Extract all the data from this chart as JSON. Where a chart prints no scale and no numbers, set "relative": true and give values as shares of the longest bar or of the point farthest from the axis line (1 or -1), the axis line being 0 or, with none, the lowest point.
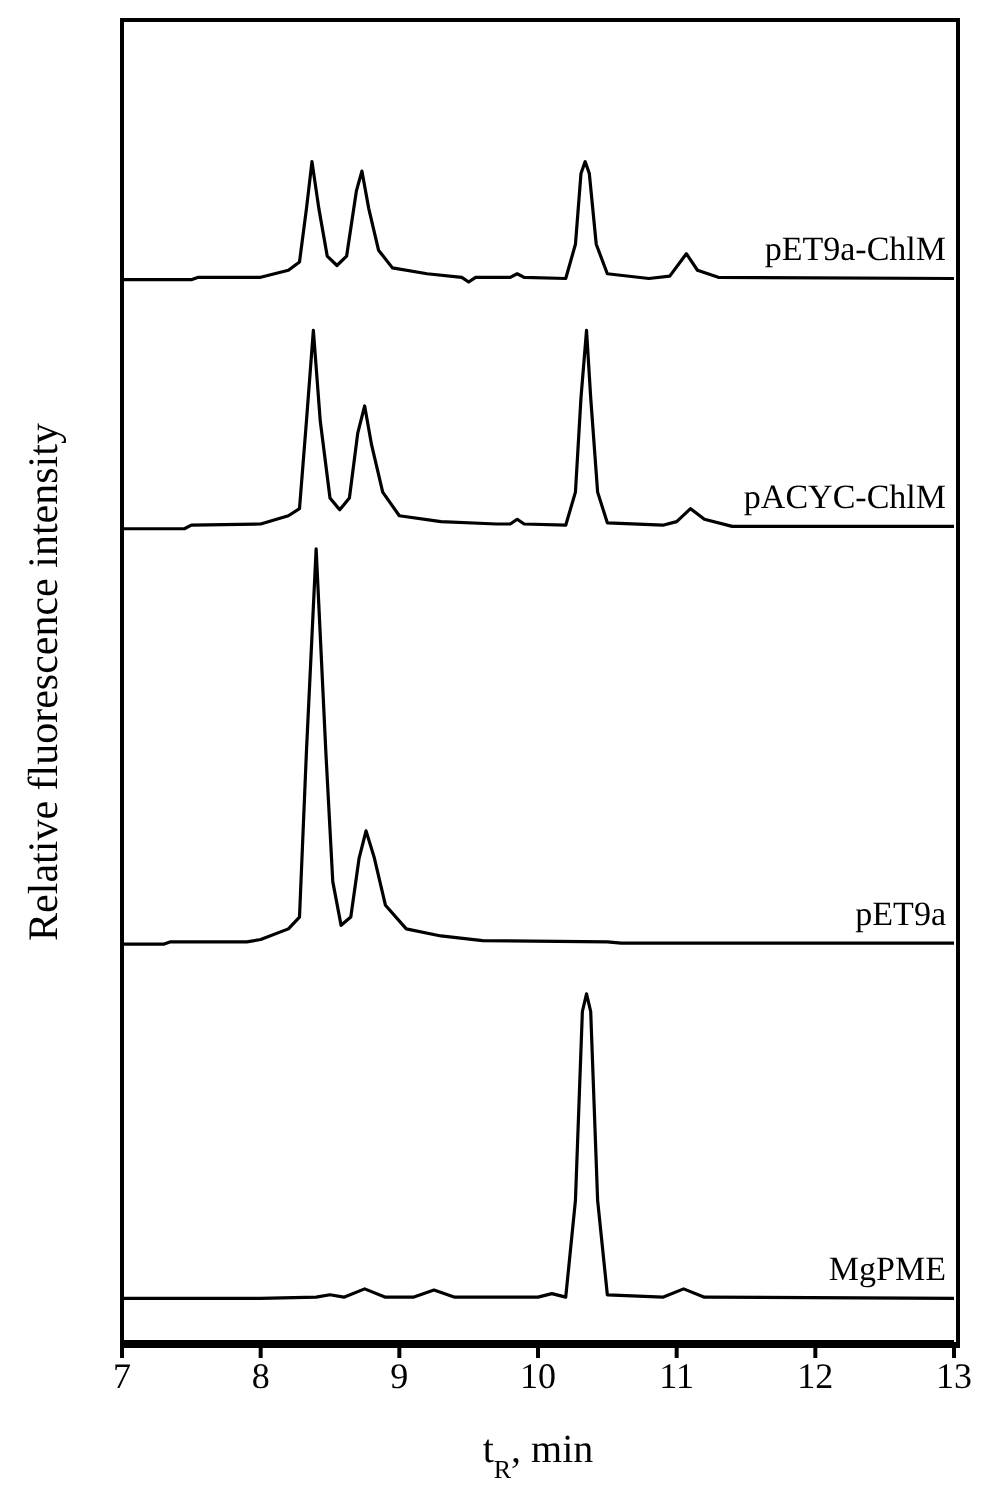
{
  "chart_data": {
    "type": "line",
    "relative": true,
    "xlabel": "t$_{R}$, min",
    "ylabel": "Relative fluorescence intensity",
    "xlim": [
      7,
      13
    ],
    "xticks": [
      7,
      8,
      9,
      10,
      11,
      12,
      13
    ],
    "marker": "none",
    "line_style": "solid",
    "series": [
      {
        "name": "pET9a-ChlM",
        "color": "#000000",
        "x": [
          7.0,
          7.5,
          7.55,
          8.0,
          8.2,
          8.28,
          8.33,
          8.37,
          8.42,
          8.48,
          8.55,
          8.62,
          8.69,
          8.73,
          8.78,
          8.85,
          8.95,
          9.2,
          9.45,
          9.5,
          9.55,
          9.8,
          9.85,
          9.9,
          10.2,
          10.27,
          10.31,
          10.34,
          10.37,
          10.42,
          10.5,
          10.8,
          10.95,
          11.07,
          11.15,
          11.3,
          13.0
        ],
        "values": [
          0.9,
          0.9,
          0.902,
          0.902,
          0.908,
          0.915,
          0.96,
          1.0,
          0.96,
          0.92,
          0.912,
          0.92,
          0.975,
          0.992,
          0.96,
          0.925,
          0.91,
          0.905,
          0.902,
          0.898,
          0.902,
          0.902,
          0.905,
          0.902,
          0.901,
          0.93,
          0.99,
          1.0,
          0.99,
          0.93,
          0.905,
          0.901,
          0.903,
          0.922,
          0.908,
          0.902,
          0.901
        ]
      },
      {
        "name": "pACYC-ChlM",
        "color": "#000000",
        "x": [
          7.0,
          7.45,
          7.5,
          8.0,
          8.2,
          8.28,
          8.33,
          8.38,
          8.43,
          8.5,
          8.57,
          8.64,
          8.7,
          8.75,
          8.8,
          8.88,
          9.0,
          9.3,
          9.7,
          9.8,
          9.85,
          9.9,
          10.2,
          10.27,
          10.31,
          10.35,
          10.38,
          10.43,
          10.5,
          10.9,
          11.0,
          11.1,
          11.2,
          11.4,
          13.0
        ],
        "values": [
          0.689,
          0.689,
          0.692,
          0.693,
          0.7,
          0.706,
          0.78,
          0.857,
          0.78,
          0.715,
          0.705,
          0.715,
          0.77,
          0.793,
          0.76,
          0.72,
          0.7,
          0.695,
          0.693,
          0.693,
          0.697,
          0.693,
          0.692,
          0.72,
          0.8,
          0.857,
          0.8,
          0.72,
          0.694,
          0.692,
          0.695,
          0.706,
          0.697,
          0.691,
          0.691
        ]
      },
      {
        "name": "pET9a",
        "color": "#000000",
        "x": [
          7.0,
          7.3,
          7.35,
          7.9,
          8.0,
          8.2,
          8.28,
          8.33,
          8.4,
          8.47,
          8.52,
          8.58,
          8.65,
          8.71,
          8.76,
          8.82,
          8.9,
          9.05,
          9.3,
          9.6,
          10.5,
          10.6,
          13.0
        ],
        "values": [
          0.337,
          0.337,
          0.339,
          0.339,
          0.341,
          0.35,
          0.36,
          0.5,
          0.672,
          0.5,
          0.39,
          0.353,
          0.36,
          0.41,
          0.433,
          0.41,
          0.37,
          0.35,
          0.344,
          0.34,
          0.339,
          0.338,
          0.338
        ]
      },
      {
        "name": "MgPME",
        "color": "#000000",
        "x": [
          7.0,
          8.0,
          8.4,
          8.5,
          8.6,
          8.75,
          8.9,
          9.1,
          9.25,
          9.4,
          9.5,
          10.0,
          10.1,
          10.2,
          10.27,
          10.32,
          10.35,
          10.38,
          10.43,
          10.5,
          10.9,
          11.05,
          11.2,
          13.0
        ],
        "values": [
          0.037,
          0.037,
          0.038,
          0.04,
          0.038,
          0.045,
          0.038,
          0.038,
          0.044,
          0.038,
          0.038,
          0.038,
          0.041,
          0.038,
          0.12,
          0.28,
          0.295,
          0.28,
          0.12,
          0.04,
          0.038,
          0.045,
          0.038,
          0.037
        ]
      }
    ]
  }
}
